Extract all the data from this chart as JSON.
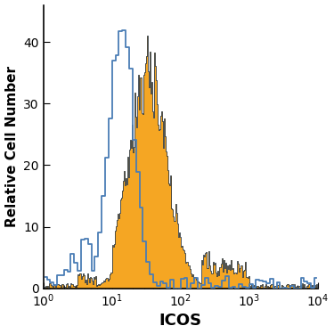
{
  "title": "",
  "xlabel": "ICOS",
  "ylabel": "Relative Cell Number",
  "xlim_log": [
    1,
    10000
  ],
  "ylim": [
    0,
    46
  ],
  "yticks": [
    0,
    10,
    20,
    30,
    40
  ],
  "blue_color": "#4a7db5",
  "orange_color": "#f5a623",
  "dark_outline": "#1c2b3a",
  "background_color": "#ffffff",
  "blue_peak_log": 1.14,
  "blue_std": 0.18,
  "blue_max": 44,
  "orange_peak_log": 1.52,
  "orange_std": 0.28,
  "orange_max": 35,
  "n_bins_blue": 80,
  "n_bins_orange": 300
}
